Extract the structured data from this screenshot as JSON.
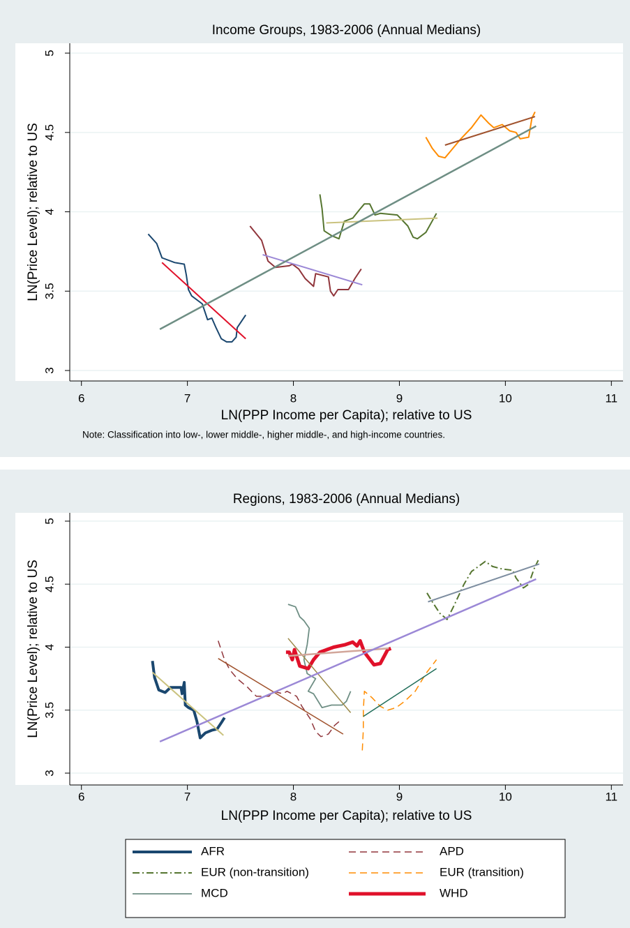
{
  "chart_data": [
    {
      "type": "line",
      "title": "Income Groups, 1983-2006 (Annual Medians)",
      "xlabel": "LN(PPP Income per Capita); relative to US",
      "ylabel": "LN(Price Level); relative to US",
      "note": "Note: Classification into low-, lower middle-, higher middle-, and high-income countries.",
      "xlim": [
        5.89,
        11.11
      ],
      "ylim": [
        2.934,
        5.062
      ],
      "xticks": [
        6,
        7,
        8,
        9,
        10,
        11
      ],
      "yticks": [
        3,
        3.5,
        4,
        4.5,
        5
      ],
      "grid": true,
      "series": [
        {
          "color": "#1a476f",
          "width": 2,
          "x": [
            6.63,
            6.71,
            6.76,
            6.88,
            6.97,
            6.99,
            7.01,
            7.04,
            7.14,
            7.19,
            7.23,
            7.27,
            7.32,
            7.37,
            7.42,
            7.46,
            7.47,
            7.55
          ],
          "values": [
            3.86,
            3.8,
            3.71,
            3.68,
            3.67,
            3.6,
            3.51,
            3.47,
            3.42,
            3.32,
            3.33,
            3.27,
            3.2,
            3.18,
            3.18,
            3.21,
            3.27,
            3.35
          ]
        },
        {
          "color": "#e0112a",
          "width": 2,
          "x": [
            6.76,
            7.55
          ],
          "values": [
            3.68,
            3.2
          ]
        },
        {
          "color": "#90353b",
          "width": 2,
          "x": [
            7.59,
            7.7,
            7.76,
            7.83,
            7.96,
            7.99,
            8.05,
            8.11,
            8.19,
            8.21,
            8.33,
            8.35,
            8.38,
            8.42,
            8.52,
            8.58,
            8.64
          ],
          "values": [
            3.91,
            3.82,
            3.69,
            3.65,
            3.66,
            3.67,
            3.64,
            3.58,
            3.53,
            3.61,
            3.59,
            3.5,
            3.47,
            3.51,
            3.51,
            3.58,
            3.64
          ]
        },
        {
          "color": "#9b88d6",
          "width": 2,
          "x": [
            7.71,
            8.65
          ],
          "values": [
            3.73,
            3.54
          ]
        },
        {
          "color": "#55752f",
          "width": 2,
          "x": [
            8.25,
            8.27,
            8.29,
            8.36,
            8.43,
            8.48,
            8.56,
            8.62,
            8.67,
            8.72,
            8.77,
            8.82,
            8.98,
            9.08,
            9.13,
            9.17,
            9.25,
            9.35
          ],
          "values": [
            4.11,
            4.02,
            3.88,
            3.85,
            3.83,
            3.94,
            3.96,
            4.01,
            4.05,
            4.05,
            3.98,
            3.99,
            3.98,
            3.91,
            3.84,
            3.83,
            3.87,
            3.99
          ]
        },
        {
          "color": "#cac27e",
          "width": 2,
          "x": [
            8.31,
            9.36
          ],
          "values": [
            3.93,
            3.96
          ]
        },
        {
          "color": "#ff8c00",
          "width": 2,
          "x": [
            9.25,
            9.31,
            9.37,
            9.43,
            9.48,
            9.58,
            9.68,
            9.77,
            9.84,
            9.89,
            9.97,
            10.04,
            10.1,
            10.14,
            10.22,
            10.25,
            10.28
          ],
          "values": [
            4.47,
            4.4,
            4.35,
            4.34,
            4.38,
            4.46,
            4.53,
            4.61,
            4.56,
            4.53,
            4.55,
            4.51,
            4.5,
            4.46,
            4.47,
            4.59,
            4.63
          ]
        },
        {
          "color": "#a0522d",
          "width": 2,
          "x": [
            9.43,
            10.28
          ],
          "values": [
            4.42,
            4.6
          ]
        },
        {
          "color": "#6e8e84",
          "width": 2.5,
          "x": [
            6.74,
            10.29
          ],
          "values": [
            3.26,
            4.54
          ]
        }
      ]
    },
    {
      "type": "line",
      "title": "Regions, 1983-2006 (Annual Medians)",
      "xlabel": "LN(PPP Income per Capita); relative to US",
      "ylabel": "LN(Price Level); relative to US",
      "xlim": [
        5.89,
        11.11
      ],
      "ylim": [
        2.906,
        5.066
      ],
      "xticks": [
        6,
        7,
        8,
        9,
        10,
        11
      ],
      "yticks": [
        3,
        3.5,
        4,
        4.5,
        5
      ],
      "grid": true,
      "legend": "bottom",
      "series": [
        {
          "name": "AFR",
          "color": "#1a476f",
          "width": 4,
          "x": [
            6.67,
            6.69,
            6.73,
            6.79,
            6.84,
            6.94,
            6.95,
            6.97,
            6.98,
            7.01,
            7.06,
            7.09,
            7.12,
            7.17,
            7.23,
            7.28,
            7.32,
            7.35
          ],
          "values": [
            3.89,
            3.76,
            3.66,
            3.64,
            3.68,
            3.68,
            3.63,
            3.72,
            3.54,
            3.52,
            3.5,
            3.41,
            3.28,
            3.32,
            3.34,
            3.35,
            3.4,
            3.44
          ]
        },
        {
          "name": "APD",
          "color": "#90353b",
          "width": 1.5,
          "dash": "dashed",
          "x": [
            7.29,
            7.35,
            7.4,
            7.47,
            7.57,
            7.65,
            7.77,
            7.81,
            7.9,
            7.94,
            8.03,
            8.08,
            8.16,
            8.21,
            8.26,
            8.33,
            8.39,
            8.46
          ],
          "values": [
            4.05,
            3.9,
            3.82,
            3.75,
            3.68,
            3.61,
            3.61,
            3.65,
            3.63,
            3.65,
            3.61,
            3.53,
            3.43,
            3.33,
            3.29,
            3.31,
            3.38,
            3.43
          ]
        },
        {
          "name": "EUR (non-transition)",
          "color": "#55752f",
          "width": 2,
          "dash": "dashdot",
          "x": [
            9.26,
            9.31,
            9.38,
            9.45,
            9.51,
            9.61,
            9.68,
            9.81,
            9.88,
            9.97,
            10.07,
            10.1,
            10.17,
            10.22,
            10.27,
            10.31
          ],
          "values": [
            4.43,
            4.36,
            4.27,
            4.22,
            4.32,
            4.5,
            4.6,
            4.68,
            4.64,
            4.62,
            4.61,
            4.55,
            4.47,
            4.5,
            4.62,
            4.69
          ]
        },
        {
          "name": "EUR (transition)",
          "color": "#ff8c00",
          "width": 1.5,
          "dash": "dashed",
          "x": [
            8.65,
            8.66,
            8.66,
            8.67,
            8.74,
            8.82,
            8.89,
            8.97,
            9.05,
            9.15,
            9.25,
            9.35
          ],
          "values": [
            3.18,
            3.35,
            3.5,
            3.65,
            3.6,
            3.53,
            3.5,
            3.52,
            3.57,
            3.65,
            3.79,
            3.9
          ]
        },
        {
          "name": "MCD",
          "color": "#6e8e84",
          "width": 1.8,
          "x": [
            7.95,
            8.02,
            8.06,
            8.1,
            8.15,
            8.13,
            8.1,
            8.13,
            8.21,
            8.14,
            8.19,
            8.27,
            8.36,
            8.46,
            8.5,
            8.54
          ],
          "values": [
            4.34,
            4.32,
            4.24,
            4.21,
            4.15,
            4.02,
            3.9,
            3.79,
            3.75,
            3.65,
            3.63,
            3.52,
            3.54,
            3.54,
            3.57,
            3.65
          ]
        },
        {
          "name": "WHD",
          "color": "#e0112a",
          "width": 5,
          "x": [
            7.93,
            7.96,
            7.99,
            8.01,
            8.06,
            8.14,
            8.19,
            8.25,
            8.38,
            8.49,
            8.56,
            8.6,
            8.63,
            8.67,
            8.76,
            8.82,
            8.89,
            8.92
          ],
          "values": [
            3.96,
            3.96,
            3.9,
            3.98,
            3.85,
            3.83,
            3.9,
            3.96,
            4.0,
            4.02,
            4.04,
            4.01,
            4.05,
            3.96,
            3.86,
            3.87,
            3.98,
            3.99
          ]
        },
        {
          "color": "#cac27e",
          "width": 2,
          "x": [
            6.67,
            7.34
          ],
          "values": [
            3.8,
            3.3
          ]
        },
        {
          "color": "#a0522d",
          "width": 1.5,
          "x": [
            7.29,
            8.47
          ],
          "values": [
            3.91,
            3.31
          ]
        },
        {
          "color": "#7d8da0",
          "width": 2,
          "x": [
            9.27,
            10.32
          ],
          "values": [
            4.36,
            4.66
          ]
        },
        {
          "color": "#216e5a",
          "width": 1.5,
          "x": [
            8.66,
            9.35
          ],
          "values": [
            3.45,
            3.83
          ]
        },
        {
          "color": "#9c8847",
          "width": 1.5,
          "x": [
            7.95,
            8.54
          ],
          "values": [
            4.07,
            3.48
          ]
        },
        {
          "color": "#d2a69a",
          "width": 2.5,
          "x": [
            7.95,
            8.9
          ],
          "values": [
            3.93,
            3.99
          ]
        },
        {
          "color": "#9b88d6",
          "width": 2.5,
          "x": [
            6.74,
            10.29
          ],
          "values": [
            3.25,
            4.54
          ]
        }
      ]
    }
  ]
}
